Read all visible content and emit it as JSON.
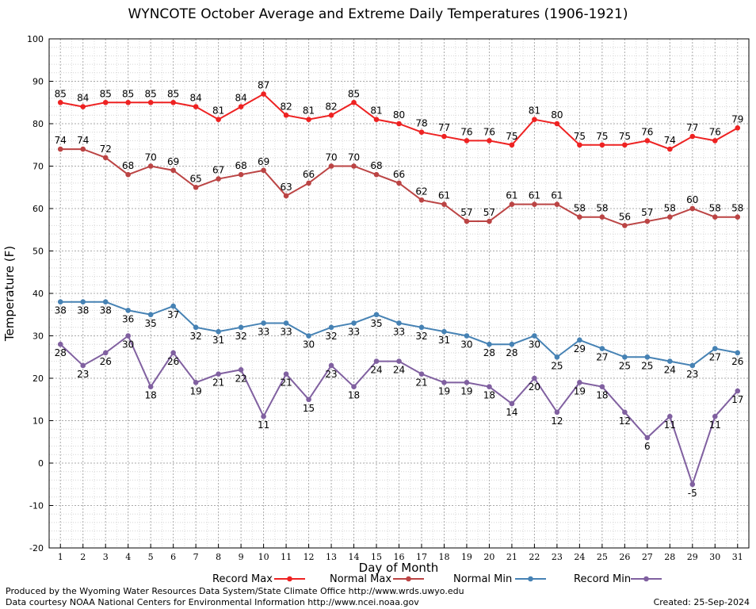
{
  "chart_data": {
    "type": "line",
    "title": "WYNCOTE October Average and Extreme Daily Temperatures (1906-1921)",
    "xlabel": "Day of Month",
    "ylabel": "Temperature (F)",
    "ylim": [
      -20,
      100
    ],
    "yticks": [
      -20,
      -10,
      0,
      10,
      20,
      30,
      40,
      50,
      60,
      70,
      80,
      90,
      100
    ],
    "x": [
      1,
      2,
      3,
      4,
      5,
      6,
      7,
      8,
      9,
      10,
      11,
      12,
      13,
      14,
      15,
      16,
      17,
      18,
      19,
      20,
      21,
      22,
      23,
      24,
      25,
      26,
      27,
      28,
      29,
      30,
      31
    ],
    "grid": true,
    "legend_position": "bottom",
    "series": [
      {
        "name": "Record Max",
        "color": "#ee2222",
        "label_pos": "above",
        "values": [
          85,
          84,
          85,
          85,
          85,
          85,
          84,
          81,
          84,
          87,
          82,
          81,
          82,
          85,
          81,
          80,
          78,
          77,
          76,
          76,
          75,
          81,
          80,
          75,
          75,
          75,
          76,
          74,
          77,
          76,
          79
        ]
      },
      {
        "name": "Normal Max",
        "color": "#bb4444",
        "label_pos": "above",
        "values": [
          74,
          74,
          72,
          68,
          70,
          69,
          65,
          67,
          68,
          69,
          63,
          66,
          70,
          70,
          68,
          66,
          62,
          61,
          57,
          57,
          61,
          61,
          61,
          58,
          58,
          56,
          57,
          58,
          60,
          58,
          58
        ]
      },
      {
        "name": "Normal Min",
        "color": "#4682b4",
        "label_pos": "below",
        "values": [
          38,
          38,
          38,
          36,
          35,
          37,
          32,
          31,
          32,
          33,
          33,
          30,
          32,
          33,
          35,
          33,
          32,
          31,
          30,
          28,
          28,
          30,
          25,
          29,
          27,
          25,
          25,
          24,
          23,
          27,
          26
        ]
      },
      {
        "name": "Record Min",
        "color": "#8060a0",
        "label_pos": "below",
        "values": [
          28,
          23,
          26,
          30,
          18,
          26,
          19,
          21,
          22,
          11,
          21,
          15,
          23,
          18,
          24,
          24,
          21,
          19,
          19,
          18,
          14,
          20,
          12,
          19,
          18,
          12,
          6,
          11,
          -5,
          11,
          17
        ]
      }
    ]
  },
  "footer": {
    "credit1": "Produced by the Wyoming Water Resources Data System/State Climate Office http://www.wrds.uwyo.edu",
    "credit2": "Data courtesy NOAA National Centers for Environmental Information http://www.ncei.noaa.gov",
    "created": "Created:  25-Sep-2024"
  }
}
